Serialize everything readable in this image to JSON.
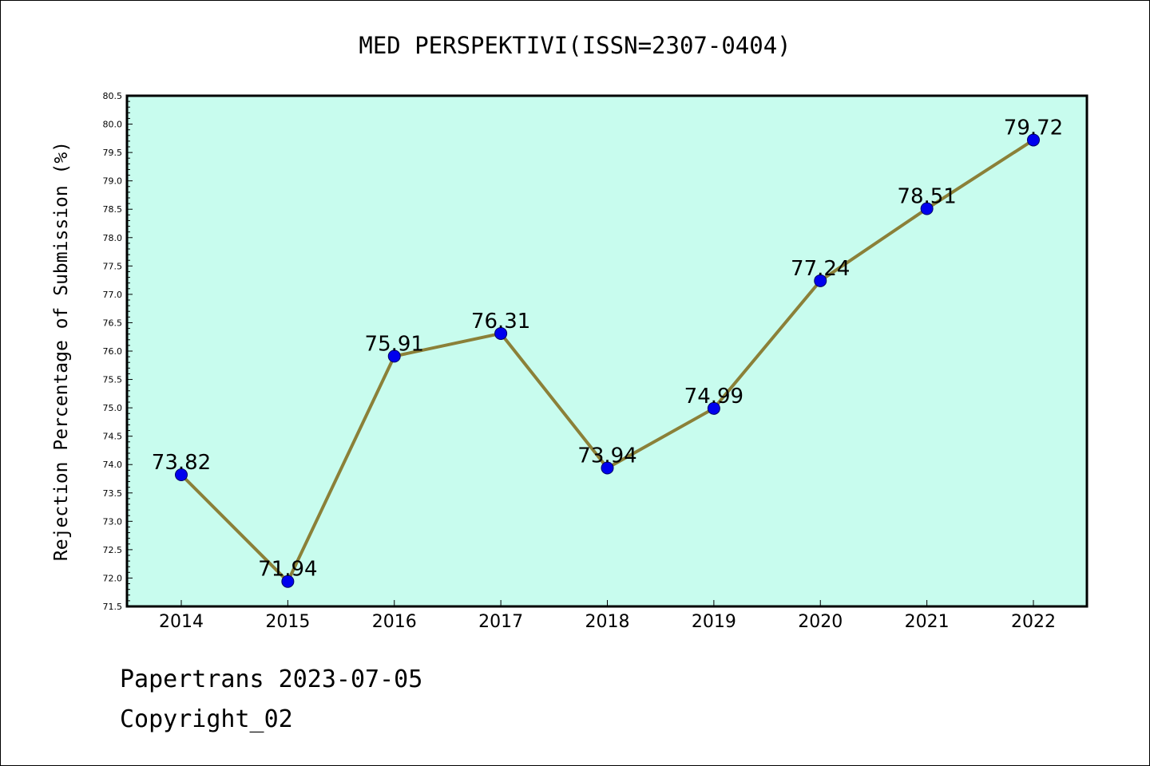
{
  "chart_data": {
    "type": "line",
    "title": "MED PERSPEKTIVI(ISSN=2307-0404)",
    "xlabel": "",
    "ylabel": "Rejection Percentage of Submission (%)",
    "categories": [
      "2014",
      "2015",
      "2016",
      "2017",
      "2018",
      "2019",
      "2020",
      "2021",
      "2022"
    ],
    "series": [
      {
        "values": [
          73.82,
          71.94,
          75.91,
          76.31,
          73.94,
          74.99,
          77.24,
          78.51,
          79.72
        ]
      }
    ],
    "value_labels": [
      "73.82",
      "71.94",
      "75.91",
      "76.31",
      "73.94",
      "74.99",
      "77.24",
      "78.51",
      "79.72"
    ],
    "ylim": [
      71.5,
      80.5
    ],
    "y_ticks": [
      "71.5",
      "72.0",
      "72.5",
      "73.0",
      "73.5",
      "74.0",
      "74.5",
      "75.0",
      "75.5",
      "76.0",
      "76.5",
      "77.0",
      "77.5",
      "78.0",
      "78.5",
      "79.0",
      "79.5",
      "80.0",
      "80.5"
    ],
    "grid": false,
    "legend": "none",
    "colors": {
      "plot_background": "#c8fcee",
      "line": "#8b8038",
      "marker": "#0000ee",
      "axes": "#000000"
    }
  },
  "footer": {
    "line1": "Papertrans 2023-07-05",
    "line2": "Copyright_02"
  }
}
